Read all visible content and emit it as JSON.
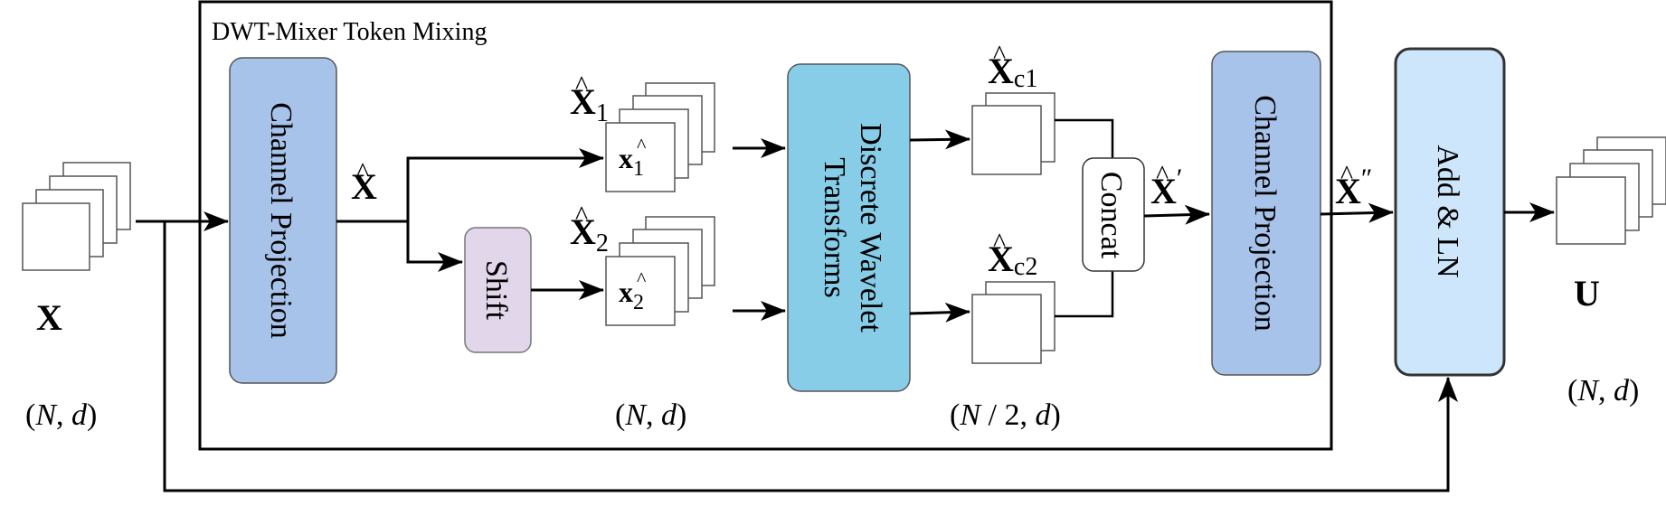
{
  "title": "DWT-Mixer  Token Mixing",
  "colors": {
    "channel_projection": "#a7c3ea",
    "dwt": "#87cde8",
    "shift": "#e2d6ea",
    "add_ln": "#cde6fc",
    "border": "#000000"
  },
  "blocks": {
    "channel_projection_1": "Channel Projection",
    "shift": "Shift",
    "dwt_line1": "Discrete Wavelet",
    "dwt_line2": "Transforms",
    "concat": "Concat",
    "channel_projection_2": "Channel Projection",
    "add_ln": "Add & LN"
  },
  "tensors": {
    "input": "X",
    "x_hat": "X",
    "x_hat_1": "X",
    "x_hat_1_sub": "1",
    "x_hat_2": "X",
    "x_hat_2_sub": "2",
    "small_x1": "x",
    "small_x1_sub": "1",
    "small_x2": "x",
    "small_x2_sub": "2",
    "x_c1": "X",
    "x_c1_sub": "c1",
    "x_c2": "X",
    "x_c2_sub": "c2",
    "x_prime": "X",
    "x_prime_mark": "′",
    "x_dprime": "X",
    "x_dprime_mark": "″",
    "output": "U"
  },
  "dims": {
    "input": [
      "(",
      "N",
      ", ",
      "d",
      ")"
    ],
    "mid": [
      "(",
      "N",
      ", ",
      "d",
      ")"
    ],
    "half": [
      "(",
      "N",
      " / 2, ",
      "d",
      ")"
    ],
    "output": [
      "(",
      "N",
      ", ",
      "d",
      ")"
    ]
  }
}
